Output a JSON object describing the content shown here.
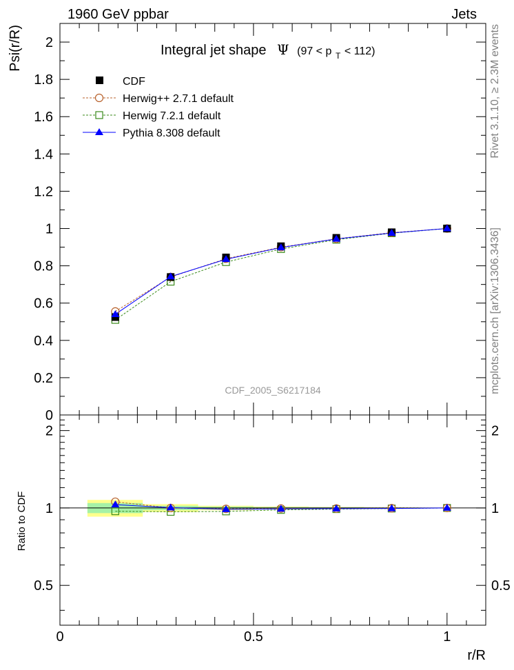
{
  "header": {
    "left": "1960 GeV ppbar",
    "right": "Jets"
  },
  "side_labels": {
    "rivet": "Rivet 3.1.10, ≥ 2.3M events",
    "mcplots": "mcplots.cern.ch [arXiv:1306.3436]"
  },
  "watermark": "CDF_2005_S6217184",
  "colors": {
    "cdf": "#000000",
    "herwigpp": "#b8612b",
    "herwig7": "#3a8a1a",
    "pythia": "#0000ff",
    "band_inner": "#a6f2a6",
    "band_outer": "#ffff8c"
  },
  "chart_data": {
    "type": "line",
    "title_prefix": "Integral jet shape",
    "title_symbol": "Ψ",
    "title_range": {
      "open": "(97 < p",
      "sub": "T",
      "close": " < 112)"
    },
    "ylabel": "Psi(r/R)",
    "ratio_ylabel": "Ratio to CDF",
    "xlabel": "r/R",
    "xlim": [
      0,
      1.1
    ],
    "ylim": [
      0,
      2.1
    ],
    "ratio_ylim": [
      0.35,
      2.3
    ],
    "x_ticks": [
      "0",
      "0.5",
      "1"
    ],
    "y_ticks": [
      "0",
      "0.2",
      "0.4",
      "0.6",
      "0.8",
      "1",
      "1.2",
      "1.4",
      "1.6",
      "1.8",
      "2"
    ],
    "ratio_ticks": [
      "0.5",
      "1",
      "2"
    ],
    "x": [
      0.143,
      0.286,
      0.429,
      0.571,
      0.714,
      0.857,
      1.0
    ],
    "series": [
      {
        "name": "CDF",
        "marker": "filled-square",
        "values": [
          0.525,
          0.74,
          0.845,
          0.905,
          0.95,
          0.98,
          1.0
        ],
        "ratio": [
          1,
          1,
          1,
          1,
          1,
          1,
          1
        ]
      },
      {
        "name": "Herwig++ 2.7.1 default",
        "marker": "open-circle",
        "values": [
          0.555,
          0.74,
          0.838,
          0.9,
          0.945,
          0.978,
          1.0
        ],
        "ratio": [
          1.057,
          1.0,
          0.992,
          0.995,
          0.995,
          0.998,
          1.0
        ]
      },
      {
        "name": "Herwig 7.2.1 default",
        "marker": "open-square",
        "values": [
          0.51,
          0.715,
          0.82,
          0.89,
          0.94,
          0.975,
          1.0
        ],
        "ratio": [
          0.971,
          0.966,
          0.97,
          0.983,
          0.99,
          0.995,
          1.0
        ]
      },
      {
        "name": "Pythia 8.308 default",
        "marker": "filled-triangle",
        "values": [
          0.54,
          0.742,
          0.835,
          0.898,
          0.944,
          0.976,
          1.0
        ],
        "ratio": [
          1.03,
          1.003,
          0.988,
          0.992,
          0.994,
          0.996,
          1.0
        ]
      }
    ],
    "ratio_band": {
      "bin_edges": [
        0.071,
        0.214,
        0.357,
        0.5,
        0.643,
        0.786,
        0.929
      ],
      "inner": [
        0.045,
        0.02,
        0.012,
        0.008,
        0.006,
        0.004,
        0.0
      ],
      "outer": [
        0.075,
        0.035,
        0.02,
        0.013,
        0.009,
        0.006,
        0.0
      ]
    },
    "legend_position": "top-left",
    "grid": false
  }
}
